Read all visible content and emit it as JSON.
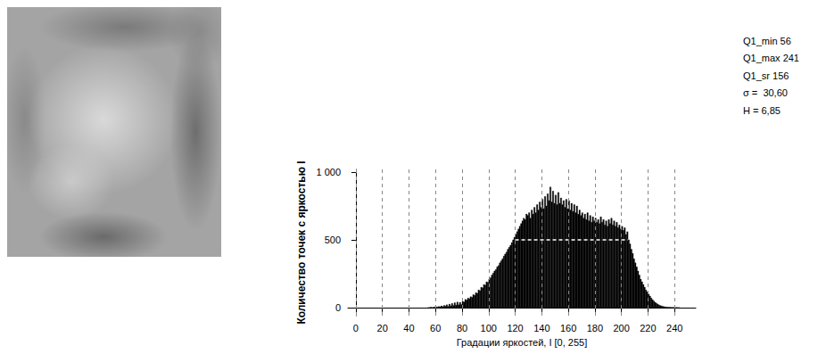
{
  "chart_data": {
    "type": "histogram",
    "x_label": "Градации яркостей, I [0, 255]",
    "y_label": "Количество точек с яркостью I",
    "bins": [
      54,
      55,
      56,
      57,
      58,
      59,
      60,
      61,
      62,
      63,
      64,
      65,
      66,
      67,
      68,
      69,
      70,
      71,
      72,
      73,
      74,
      75,
      76,
      77,
      78,
      79,
      80,
      81,
      82,
      83,
      84,
      85,
      86,
      87,
      88,
      89,
      90,
      91,
      92,
      93,
      94,
      95,
      96,
      97,
      98,
      99,
      100,
      101,
      102,
      103,
      104,
      105,
      106,
      107,
      108,
      109,
      110,
      111,
      112,
      113,
      114,
      115,
      116,
      117,
      118,
      119,
      120,
      121,
      122,
      123,
      124,
      125,
      126,
      127,
      128,
      129,
      130,
      131,
      132,
      133,
      134,
      135,
      136,
      137,
      138,
      139,
      140,
      141,
      142,
      143,
      144,
      145,
      146,
      147,
      148,
      149,
      150,
      151,
      152,
      153,
      154,
      155,
      156,
      157,
      158,
      159,
      160,
      161,
      162,
      163,
      164,
      165,
      166,
      167,
      168,
      169,
      170,
      171,
      172,
      173,
      174,
      175,
      176,
      177,
      178,
      179,
      180,
      181,
      182,
      183,
      184,
      185,
      186,
      187,
      188,
      189,
      190,
      191,
      192,
      193,
      194,
      195,
      196,
      197,
      198,
      199,
      200,
      201,
      202,
      203,
      204,
      205,
      206,
      207,
      208,
      209,
      210,
      211,
      212,
      213,
      214,
      215,
      216,
      217,
      218,
      219,
      220,
      221,
      222,
      223,
      224,
      225,
      226,
      227,
      228,
      229,
      230,
      231,
      232,
      233,
      234,
      235,
      236,
      237,
      238,
      239,
      240,
      241,
      242,
      243,
      244
    ],
    "values": [
      0,
      0,
      3,
      0,
      2,
      4,
      6,
      3,
      8,
      5,
      12,
      6,
      15,
      10,
      20,
      8,
      25,
      12,
      30,
      15,
      35,
      18,
      40,
      20,
      38,
      22,
      45,
      40,
      60,
      55,
      70,
      65,
      80,
      75,
      95,
      90,
      110,
      105,
      130,
      125,
      150,
      145,
      170,
      165,
      190,
      185,
      210,
      220,
      240,
      255,
      270,
      280,
      300,
      310,
      330,
      345,
      360,
      380,
      395,
      410,
      430,
      445,
      460,
      480,
      500,
      520,
      540,
      560,
      580,
      600,
      620,
      640,
      660,
      650,
      690,
      680,
      700,
      660,
      720,
      690,
      740,
      700,
      760,
      720,
      780,
      740,
      800,
      730,
      820,
      750,
      840,
      790,
      890,
      780,
      860,
      770,
      830,
      760,
      850,
      770,
      810,
      760,
      790,
      740,
      800,
      730,
      790,
      720,
      770,
      710,
      760,
      700,
      750,
      690,
      720,
      680,
      700,
      660,
      690,
      650,
      700,
      640,
      680,
      630,
      670,
      640,
      660,
      630,
      650,
      620,
      670,
      630,
      650,
      610,
      640,
      600,
      650,
      620,
      660,
      610,
      640,
      600,
      630,
      590,
      610,
      580,
      600,
      570,
      590,
      540,
      560,
      500,
      470,
      430,
      400,
      360,
      330,
      300,
      270,
      240,
      210,
      190,
      170,
      150,
      130,
      115,
      100,
      85,
      70,
      58,
      47,
      38,
      30,
      24,
      18,
      14,
      10,
      8,
      6,
      4,
      3,
      2,
      2,
      1,
      1,
      1,
      0,
      1,
      0,
      0
    ],
    "color": "#000000",
    "level_line": {
      "y": 500,
      "x": [
        120,
        205
      ]
    },
    "xlim": [
      -6,
      256
    ],
    "xticks": [
      0,
      20,
      40,
      60,
      80,
      100,
      120,
      140,
      160,
      180,
      200,
      220,
      240
    ],
    "ylim": [
      -60,
      1020
    ],
    "yticks": [
      0,
      500,
      {
        "value": 1000,
        "label": "1 000"
      }
    ],
    "grid": "x",
    "annotations": [
      "Q1_min 56",
      "Q1_max 241",
      "Q1_sr 156",
      "σ =  30,60",
      "H = 6,85"
    ]
  }
}
